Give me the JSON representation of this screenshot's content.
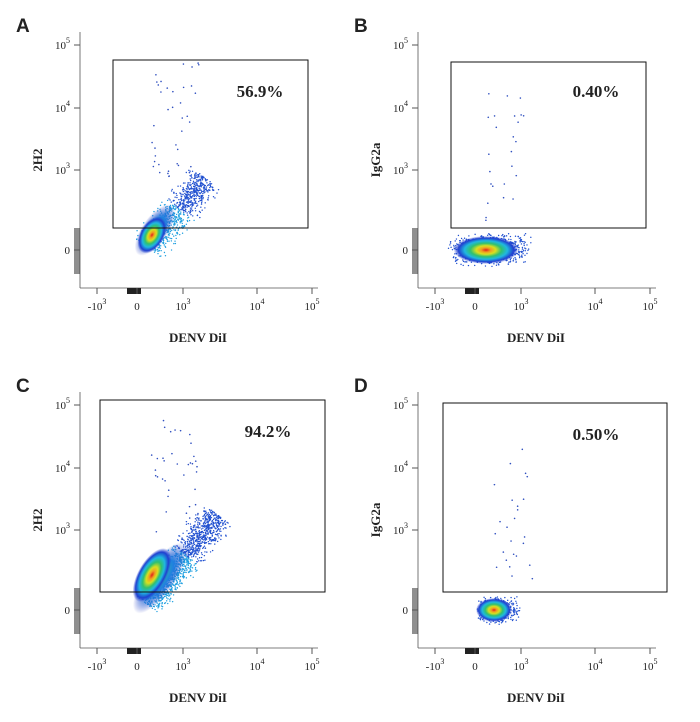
{
  "panels": [
    {
      "label": "A",
      "y_label": "2H2",
      "x_label": "DENV DiI",
      "gate_percent": "56.9%"
    },
    {
      "label": "B",
      "y_label": "IgG2a",
      "x_label": "DENV DiI",
      "gate_percent": "0.40%"
    },
    {
      "label": "C",
      "y_label": "2H2",
      "x_label": "DENV DiI",
      "gate_percent": "94.2%"
    },
    {
      "label": "D",
      "y_label": "IgG2a",
      "x_label": "DENV DiI",
      "gate_percent": "0.50%"
    }
  ],
  "x_ticks": [
    {
      "base": "-10",
      "exp": "3"
    },
    {
      "base": "0"
    },
    {
      "base": "10",
      "exp": "3"
    },
    {
      "base": "10",
      "exp": "4"
    },
    {
      "base": "10",
      "exp": "5"
    }
  ],
  "y_ticks": [
    {
      "base": "10",
      "exp": "5"
    },
    {
      "base": "10",
      "exp": "4"
    },
    {
      "base": "10",
      "exp": "3"
    },
    {
      "base": "0"
    }
  ]
}
